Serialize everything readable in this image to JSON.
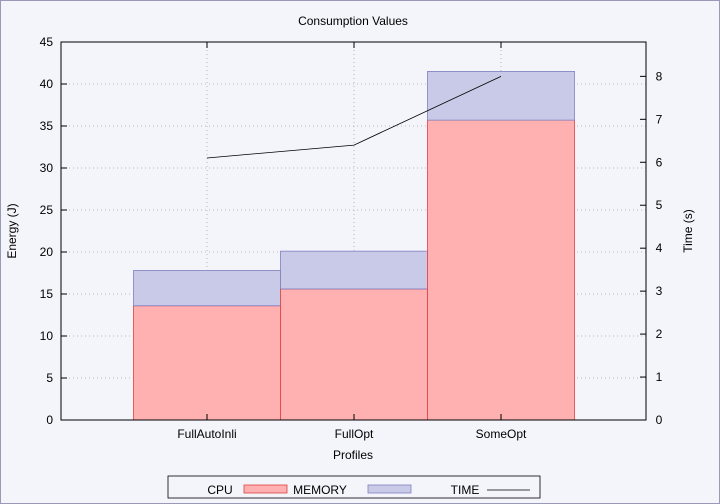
{
  "chart_data": {
    "type": "bar",
    "title": "Consumption Values",
    "xlabel": "Profiles",
    "ylabel": "Energy (J)",
    "y2label": "Time (s)",
    "categories": [
      "FullAutoInli",
      "FullOpt",
      "SomeOpt"
    ],
    "stacked": true,
    "series": [
      {
        "name": "CPU",
        "axis": "y",
        "values": [
          13.6,
          15.6,
          35.7
        ],
        "color": "#ffb0b0",
        "stroke": "#e04040"
      },
      {
        "name": "MEMORY",
        "axis": "y",
        "values": [
          4.2,
          4.5,
          5.8
        ],
        "color": "#c8cae8",
        "stroke": "#8080c0"
      },
      {
        "name": "TIME",
        "axis": "y2",
        "type": "line",
        "values": [
          6.1,
          6.4,
          8.0
        ],
        "color": "#000000"
      }
    ],
    "ylim": [
      0,
      45
    ],
    "yticks": [
      0,
      5,
      10,
      15,
      20,
      25,
      30,
      35,
      40,
      45
    ],
    "y2lim": [
      0,
      8.8
    ],
    "y2ticks": [
      0,
      1,
      2,
      3,
      4,
      5,
      6,
      7,
      8
    ],
    "grid": true,
    "legend_position": "bottom"
  }
}
